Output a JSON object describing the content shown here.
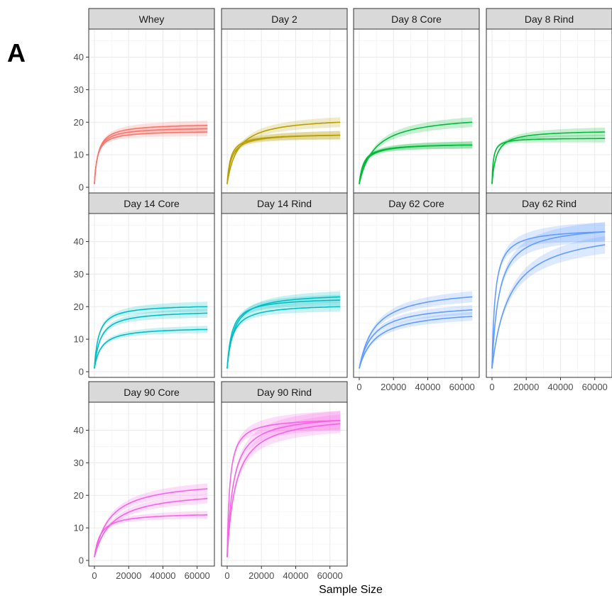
{
  "panel_label": "A",
  "chart_data": {
    "type": "line",
    "subtype": "rarefaction curves with confidence ribbons (faceted)",
    "xlabel": "Sample Size",
    "ylabel": "",
    "xlim": [
      0,
      68000
    ],
    "ylim": [
      0,
      46
    ],
    "x_ticks": [
      0,
      20000,
      40000,
      60000
    ],
    "x_tick_labels": [
      "0",
      "20000",
      "40000",
      "60000"
    ],
    "y_ticks": [
      0,
      10,
      20,
      30,
      40
    ],
    "y_tick_labels": [
      "0",
      "10",
      "20",
      "30",
      "40"
    ],
    "grid": true,
    "facet_layout": "4 columns, 3 rows",
    "facets": [
      {
        "name": "Whey",
        "color": "#F8766D",
        "curves": [
          {
            "x_max": 66000,
            "y_end": 19,
            "k": 2200
          },
          {
            "x_max": 66000,
            "y_end": 18,
            "k": 2000
          },
          {
            "x_max": 66000,
            "y_end": 17,
            "k": 1800
          }
        ]
      },
      {
        "name": "Day 2",
        "color": "#B79F00",
        "curves": [
          {
            "x_max": 66000,
            "y_end": 20,
            "k": 6000
          },
          {
            "x_max": 66000,
            "y_end": 16,
            "k": 2000
          },
          {
            "x_max": 66000,
            "y_end": 16,
            "k": 2600
          }
        ]
      },
      {
        "name": "Day 8 Core",
        "color": "#00BA38",
        "curves": [
          {
            "x_max": 66000,
            "y_end": 20,
            "k": 9000
          },
          {
            "x_max": 66000,
            "y_end": 13,
            "k": 2500
          },
          {
            "x_max": 66000,
            "y_end": 13,
            "k": 3000
          }
        ]
      },
      {
        "name": "Day 8 Rind",
        "color": "#00BA38",
        "curves": [
          {
            "x_max": 66000,
            "y_end": 17,
            "k": 2500
          },
          {
            "x_max": 66000,
            "y_end": 15,
            "k": 800
          }
        ]
      },
      {
        "name": "Day 14 Core",
        "color": "#00BFC4",
        "curves": [
          {
            "x_max": 66000,
            "y_end": 20,
            "k": 2500
          },
          {
            "x_max": 66000,
            "y_end": 18,
            "k": 3500
          },
          {
            "x_max": 66000,
            "y_end": 13,
            "k": 4000
          }
        ]
      },
      {
        "name": "Day 14 Rind",
        "color": "#00BFC4",
        "curves": [
          {
            "x_max": 66000,
            "y_end": 23,
            "k": 4000
          },
          {
            "x_max": 66000,
            "y_end": 22,
            "k": 2800
          },
          {
            "x_max": 66000,
            "y_end": 20,
            "k": 3200
          }
        ]
      },
      {
        "name": "Day 62 Core",
        "color": "#619CFF",
        "curves": [
          {
            "x_max": 66000,
            "y_end": 23,
            "k": 9000
          },
          {
            "x_max": 66000,
            "y_end": 19,
            "k": 8000
          },
          {
            "x_max": 66000,
            "y_end": 17,
            "k": 9500
          }
        ]
      },
      {
        "name": "Day 62 Rind",
        "color": "#619CFF",
        "curves": [
          {
            "x_max": 66000,
            "y_end": 43,
            "k": 1800
          },
          {
            "x_max": 66000,
            "y_end": 43,
            "k": 4000
          },
          {
            "x_max": 66000,
            "y_end": 39,
            "k": 10000
          }
        ]
      },
      {
        "name": "Day 90 Core",
        "color": "#F564E3",
        "curves": [
          {
            "x_max": 66000,
            "y_end": 22,
            "k": 9000
          },
          {
            "x_max": 66000,
            "y_end": 19,
            "k": 10000
          },
          {
            "x_max": 66000,
            "y_end": 14,
            "k": 3500
          }
        ]
      },
      {
        "name": "Day 90 Rind",
        "color": "#F564E3",
        "curves": [
          {
            "x_max": 66000,
            "y_end": 43,
            "k": 1500
          },
          {
            "x_max": 66000,
            "y_end": 43,
            "k": 3500
          },
          {
            "x_max": 66000,
            "y_end": 42,
            "k": 5000
          }
        ]
      }
    ]
  }
}
